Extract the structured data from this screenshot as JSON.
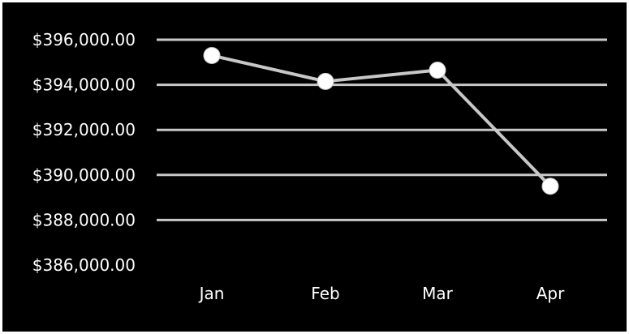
{
  "chart_data": {
    "type": "line",
    "title": "",
    "xlabel": "",
    "ylabel": "",
    "categories": [
      "Jan",
      "Feb",
      "Mar",
      "Apr"
    ],
    "series": [
      {
        "values": [
          395300,
          394150,
          394650,
          389500
        ]
      }
    ],
    "y_ticks": [
      396000,
      394000,
      392000,
      390000,
      388000,
      386000
    ],
    "y_tick_labels": [
      "$396,000.00",
      "$394,000.00",
      "$392,000.00",
      "$390,000.00",
      "$388,000.00",
      "$386,000.00"
    ],
    "ylim": [
      386000,
      396000
    ],
    "grid": true,
    "legend": "none",
    "colors": {
      "background": "#000000",
      "grid": "#c8c8c8",
      "line": "#c8c8c8",
      "marker": "#ffffff",
      "text": "#ffffff"
    }
  }
}
